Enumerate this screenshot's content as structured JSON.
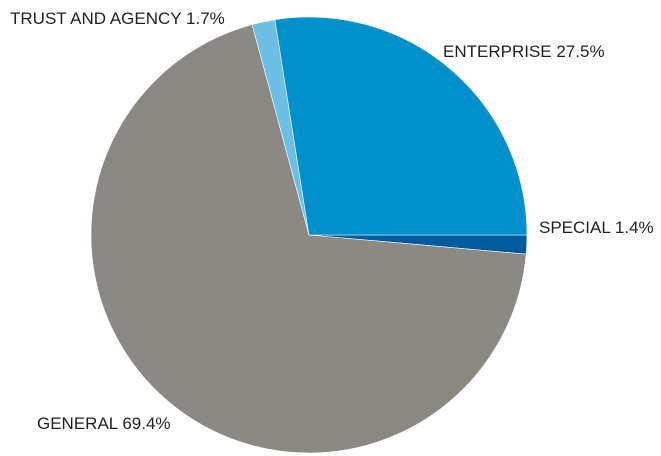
{
  "chart_data": {
    "type": "pie",
    "slices": [
      {
        "label": "SPECIAL 1.4%",
        "category": "SPECIAL",
        "value": 1.4,
        "color": "#005a9c"
      },
      {
        "label": "GENERAL 69.4%",
        "category": "GENERAL",
        "value": 69.4,
        "color": "#8b8984"
      },
      {
        "label": "TRUST AND AGENCY 1.7%",
        "category": "TRUST AND AGENCY",
        "value": 1.7,
        "color": "#6cc0e5"
      },
      {
        "label": "ENTERPRISE 27.5%",
        "category": "ENTERPRISE",
        "value": 27.5,
        "color": "#0090cc"
      }
    ],
    "start": "3 o'clock",
    "direction": "clockwise",
    "legend": "none",
    "data_labels": "outside"
  }
}
